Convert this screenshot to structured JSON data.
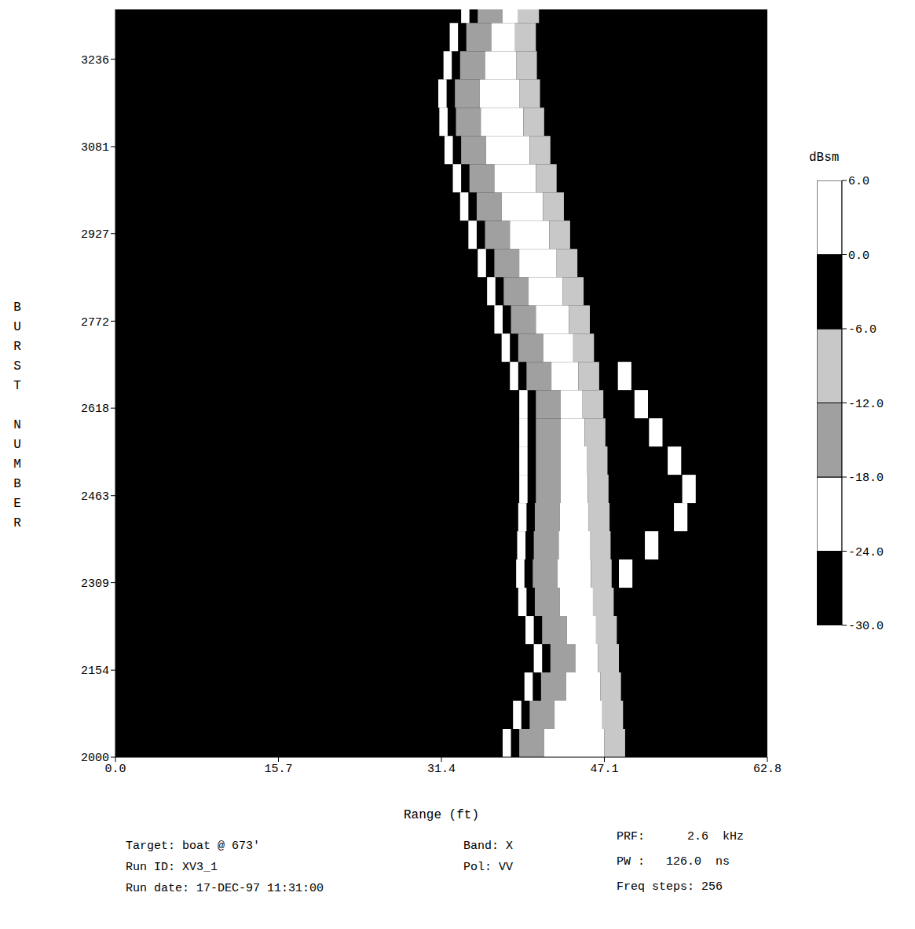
{
  "chart_data": {
    "type": "heatmap",
    "xlabel": "Range (ft)",
    "ylabel": "BURST NUMBER",
    "xlim": [
      0,
      62.8
    ],
    "xticks": [
      {
        "value": 0,
        "label": "0.0"
      },
      15.7,
      31.4,
      47.1,
      62.8
    ],
    "ylim": [
      2000,
      3324
    ],
    "yticks": [
      2000,
      2154,
      2309,
      2463,
      2618,
      2772,
      2927,
      3081,
      3236
    ],
    "background": -30,
    "rows": [
      {
        "burst": [
          2000,
          2050
        ],
        "cells": [
          [
            37.3,
            38.1,
            3
          ],
          [
            38.9,
            41.3,
            -15
          ],
          [
            41.3,
            47.1,
            3
          ],
          [
            47.1,
            49.1,
            -9
          ]
        ]
      },
      {
        "burst": [
          2050,
          2100
        ],
        "cells": [
          [
            38.3,
            39.1,
            3
          ],
          [
            39.9,
            42.3,
            -15
          ],
          [
            42.3,
            46.9,
            3
          ],
          [
            46.9,
            48.9,
            -9
          ]
        ]
      },
      {
        "burst": [
          2100,
          2150
        ],
        "cells": [
          [
            39.4,
            40.2,
            3
          ],
          [
            41.0,
            43.4,
            -15
          ],
          [
            43.4,
            46.7,
            3
          ],
          [
            46.7,
            48.7,
            -9
          ]
        ]
      },
      {
        "burst": [
          2150,
          2200
        ],
        "cells": [
          [
            40.3,
            41.1,
            3
          ],
          [
            41.9,
            44.3,
            -15
          ],
          [
            44.3,
            46.5,
            3
          ],
          [
            46.5,
            48.5,
            -9
          ]
        ]
      },
      {
        "burst": [
          2200,
          2250
        ],
        "cells": [
          [
            39.5,
            40.3,
            3
          ],
          [
            41.1,
            43.5,
            -15
          ],
          [
            43.5,
            46.3,
            3
          ],
          [
            46.3,
            48.3,
            -9
          ]
        ]
      },
      {
        "burst": [
          2250,
          2300
        ],
        "cells": [
          [
            38.8,
            39.6,
            3
          ],
          [
            40.4,
            42.8,
            -15
          ],
          [
            42.8,
            46.0,
            3
          ],
          [
            46.0,
            48.0,
            -9
          ]
        ]
      },
      {
        "burst": [
          2300,
          2350
        ],
        "cells": [
          [
            38.6,
            39.4,
            3
          ],
          [
            40.2,
            42.6,
            -15
          ],
          [
            42.6,
            45.8,
            3
          ],
          [
            45.8,
            47.8,
            -9
          ],
          [
            48.5,
            49.8,
            3
          ]
        ]
      },
      {
        "burst": [
          2350,
          2400
        ],
        "cells": [
          [
            38.7,
            39.5,
            3
          ],
          [
            40.3,
            42.7,
            -15
          ],
          [
            42.7,
            45.7,
            3
          ],
          [
            45.7,
            47.7,
            -9
          ],
          [
            51.0,
            52.3,
            3
          ]
        ]
      },
      {
        "burst": [
          2400,
          2450
        ],
        "cells": [
          [
            38.8,
            39.6,
            3
          ],
          [
            40.4,
            42.8,
            -15
          ],
          [
            42.8,
            45.6,
            3
          ],
          [
            45.6,
            47.6,
            -9
          ],
          [
            53.8,
            55.1,
            3
          ]
        ]
      },
      {
        "burst": [
          2450,
          2500
        ],
        "cells": [
          [
            38.9,
            39.7,
            3
          ],
          [
            40.5,
            42.9,
            -15
          ],
          [
            42.9,
            45.5,
            3
          ],
          [
            45.5,
            47.5,
            -9
          ],
          [
            54.6,
            55.9,
            3
          ]
        ]
      },
      {
        "burst": [
          2500,
          2550
        ],
        "cells": [
          [
            38.9,
            39.7,
            3
          ],
          [
            40.5,
            42.9,
            -15
          ],
          [
            42.9,
            45.4,
            3
          ],
          [
            45.4,
            47.4,
            -9
          ],
          [
            53.2,
            54.5,
            3
          ]
        ]
      },
      {
        "burst": [
          2550,
          2600
        ],
        "cells": [
          [
            38.9,
            39.7,
            3
          ],
          [
            40.5,
            42.9,
            -15
          ],
          [
            42.9,
            45.2,
            3
          ],
          [
            45.2,
            47.2,
            -9
          ],
          [
            51.4,
            52.7,
            3
          ]
        ]
      },
      {
        "burst": [
          2600,
          2650
        ],
        "cells": [
          [
            38.9,
            39.7,
            3
          ],
          [
            40.5,
            42.9,
            -15
          ],
          [
            42.9,
            45.0,
            3
          ],
          [
            45.0,
            47.0,
            -9
          ],
          [
            50.0,
            51.3,
            3
          ]
        ]
      },
      {
        "burst": [
          2650,
          2700
        ],
        "cells": [
          [
            38.0,
            38.8,
            3
          ],
          [
            39.6,
            42.0,
            -15
          ],
          [
            42.0,
            44.6,
            3
          ],
          [
            44.6,
            46.6,
            -9
          ],
          [
            48.4,
            49.7,
            3
          ]
        ]
      },
      {
        "burst": [
          2700,
          2750
        ],
        "cells": [
          [
            37.2,
            38.0,
            3
          ],
          [
            38.8,
            41.2,
            -15
          ],
          [
            41.2,
            44.1,
            3
          ],
          [
            44.1,
            46.1,
            -9
          ]
        ]
      },
      {
        "burst": [
          2750,
          2800
        ],
        "cells": [
          [
            36.5,
            37.3,
            3
          ],
          [
            38.1,
            40.5,
            -15
          ],
          [
            40.5,
            43.7,
            3
          ],
          [
            43.7,
            45.7,
            -9
          ]
        ]
      },
      {
        "burst": [
          2800,
          2850
        ],
        "cells": [
          [
            35.8,
            36.6,
            3
          ],
          [
            37.4,
            39.8,
            -15
          ],
          [
            39.8,
            43.1,
            3
          ],
          [
            43.1,
            45.1,
            -9
          ]
        ]
      },
      {
        "burst": [
          2850,
          2900
        ],
        "cells": [
          [
            34.9,
            35.7,
            3
          ],
          [
            36.5,
            38.9,
            -15
          ],
          [
            38.9,
            42.5,
            3
          ],
          [
            42.5,
            44.5,
            -9
          ]
        ]
      },
      {
        "burst": [
          2900,
          2950
        ],
        "cells": [
          [
            34.0,
            34.8,
            3
          ],
          [
            35.6,
            38.0,
            -15
          ],
          [
            38.0,
            41.8,
            3
          ],
          [
            41.8,
            43.8,
            -9
          ]
        ]
      },
      {
        "burst": [
          2950,
          3000
        ],
        "cells": [
          [
            33.2,
            34.0,
            3
          ],
          [
            34.8,
            37.2,
            -15
          ],
          [
            37.2,
            41.2,
            3
          ],
          [
            41.2,
            43.2,
            -9
          ]
        ]
      },
      {
        "burst": [
          3000,
          3050
        ],
        "cells": [
          [
            32.5,
            33.3,
            3
          ],
          [
            34.1,
            36.5,
            -15
          ],
          [
            36.5,
            40.5,
            3
          ],
          [
            40.5,
            42.5,
            -9
          ]
        ]
      },
      {
        "burst": [
          3050,
          3100
        ],
        "cells": [
          [
            31.7,
            32.5,
            3
          ],
          [
            33.3,
            35.7,
            -15
          ],
          [
            35.7,
            39.9,
            3
          ],
          [
            39.9,
            41.9,
            -9
          ]
        ]
      },
      {
        "burst": [
          3100,
          3150
        ],
        "cells": [
          [
            31.2,
            32.0,
            3
          ],
          [
            32.8,
            35.2,
            -15
          ],
          [
            35.2,
            39.3,
            3
          ],
          [
            39.3,
            41.3,
            -9
          ]
        ]
      },
      {
        "burst": [
          3150,
          3200
        ],
        "cells": [
          [
            31.1,
            31.9,
            3
          ],
          [
            32.7,
            35.1,
            -15
          ],
          [
            35.1,
            38.9,
            3
          ],
          [
            38.9,
            40.9,
            -9
          ]
        ]
      },
      {
        "burst": [
          3200,
          3250
        ],
        "cells": [
          [
            31.6,
            32.4,
            3
          ],
          [
            33.2,
            35.6,
            -15
          ],
          [
            35.6,
            38.6,
            3
          ],
          [
            38.6,
            40.6,
            -9
          ]
        ]
      },
      {
        "burst": [
          3250,
          3300
        ],
        "cells": [
          [
            32.2,
            33.0,
            3
          ],
          [
            33.8,
            36.2,
            -15
          ],
          [
            36.2,
            38.5,
            3
          ],
          [
            38.5,
            40.5,
            -9
          ]
        ]
      },
      {
        "burst": [
          3300,
          3324
        ],
        "cells": [
          [
            33.3,
            34.1,
            3
          ],
          [
            34.9,
            37.3,
            -15
          ],
          [
            37.3,
            38.8,
            3
          ],
          [
            38.8,
            40.8,
            -9
          ]
        ]
      }
    ],
    "colorbar": {
      "label": "dBsm",
      "range": [
        -30,
        6
      ],
      "ticks": [
        {
          "value": 6,
          "label": "6.0"
        },
        {
          "value": 0,
          "label": "0.0"
        },
        {
          "value": -6,
          "label": "-6.0"
        },
        {
          "value": -12,
          "label": "-12.0"
        },
        {
          "value": -18,
          "label": "-18.0"
        },
        {
          "value": -24,
          "label": "-24.0"
        },
        {
          "value": -30,
          "label": "-30.0"
        }
      ],
      "bands": [
        {
          "from": -30,
          "to": -24,
          "color": "#000000"
        },
        {
          "from": -24,
          "to": -18,
          "color": "#ffffff"
        },
        {
          "from": -18,
          "to": -12,
          "color": "#a0a0a0"
        },
        {
          "from": -12,
          "to": -6,
          "color": "#c8c8c8"
        },
        {
          "from": -6,
          "to": 0,
          "color": "#000000"
        },
        {
          "from": 0,
          "to": 6,
          "color": "#ffffff"
        }
      ]
    },
    "annotations": [
      "Target: boat @ 673'",
      "Run ID: XV3_1",
      "Run date: 17-DEC-97 11:31:00",
      "Band: X",
      "Pol: VV",
      "PRF:      2.6  kHz",
      "PW :   126.0  ns",
      "Freq steps: 256"
    ]
  }
}
